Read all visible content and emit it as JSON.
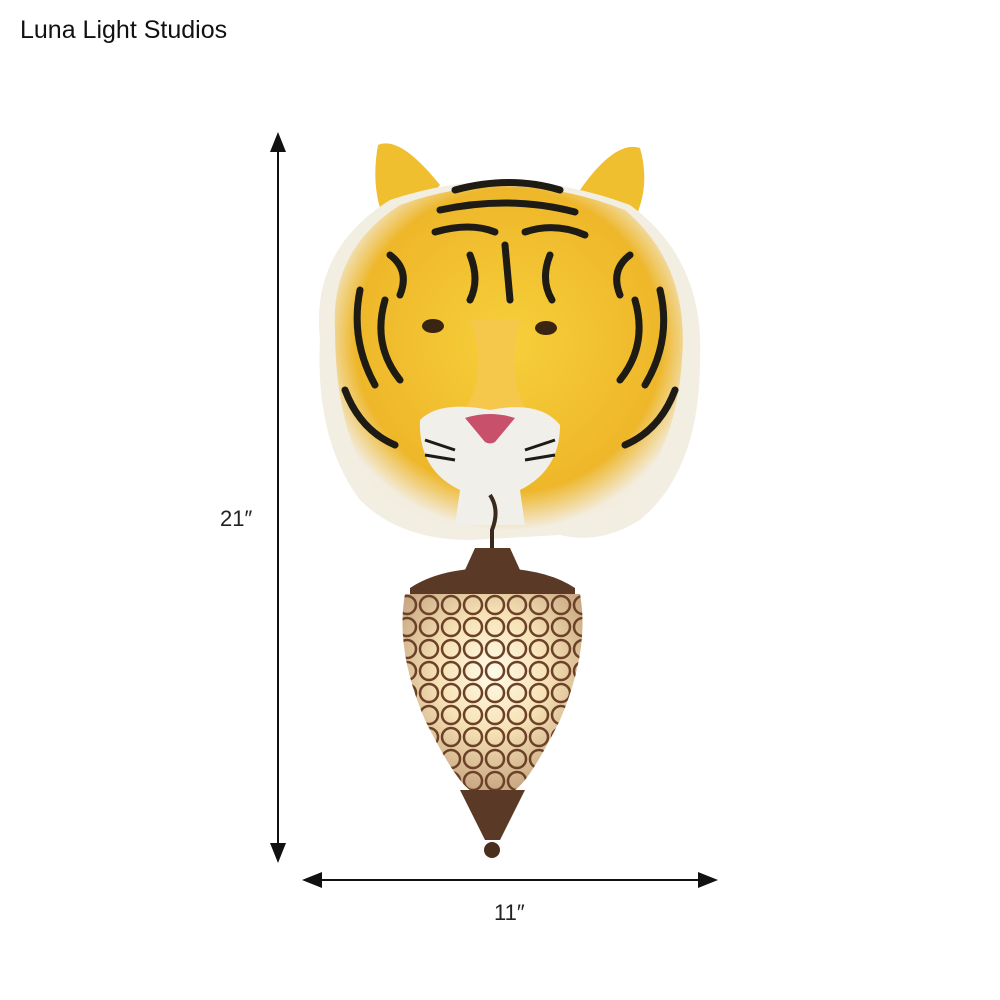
{
  "brand": {
    "name": "Luna Light Studios"
  },
  "product": {
    "image_icon": "tiger-head-wall-lamp",
    "dimensions": {
      "height_label": "21″",
      "width_label": "11″"
    },
    "colors": {
      "fur": "#f2c12e",
      "stripe": "#1e1a14",
      "muzzle": "#f1efe9",
      "metal": "#5a3a26"
    }
  }
}
